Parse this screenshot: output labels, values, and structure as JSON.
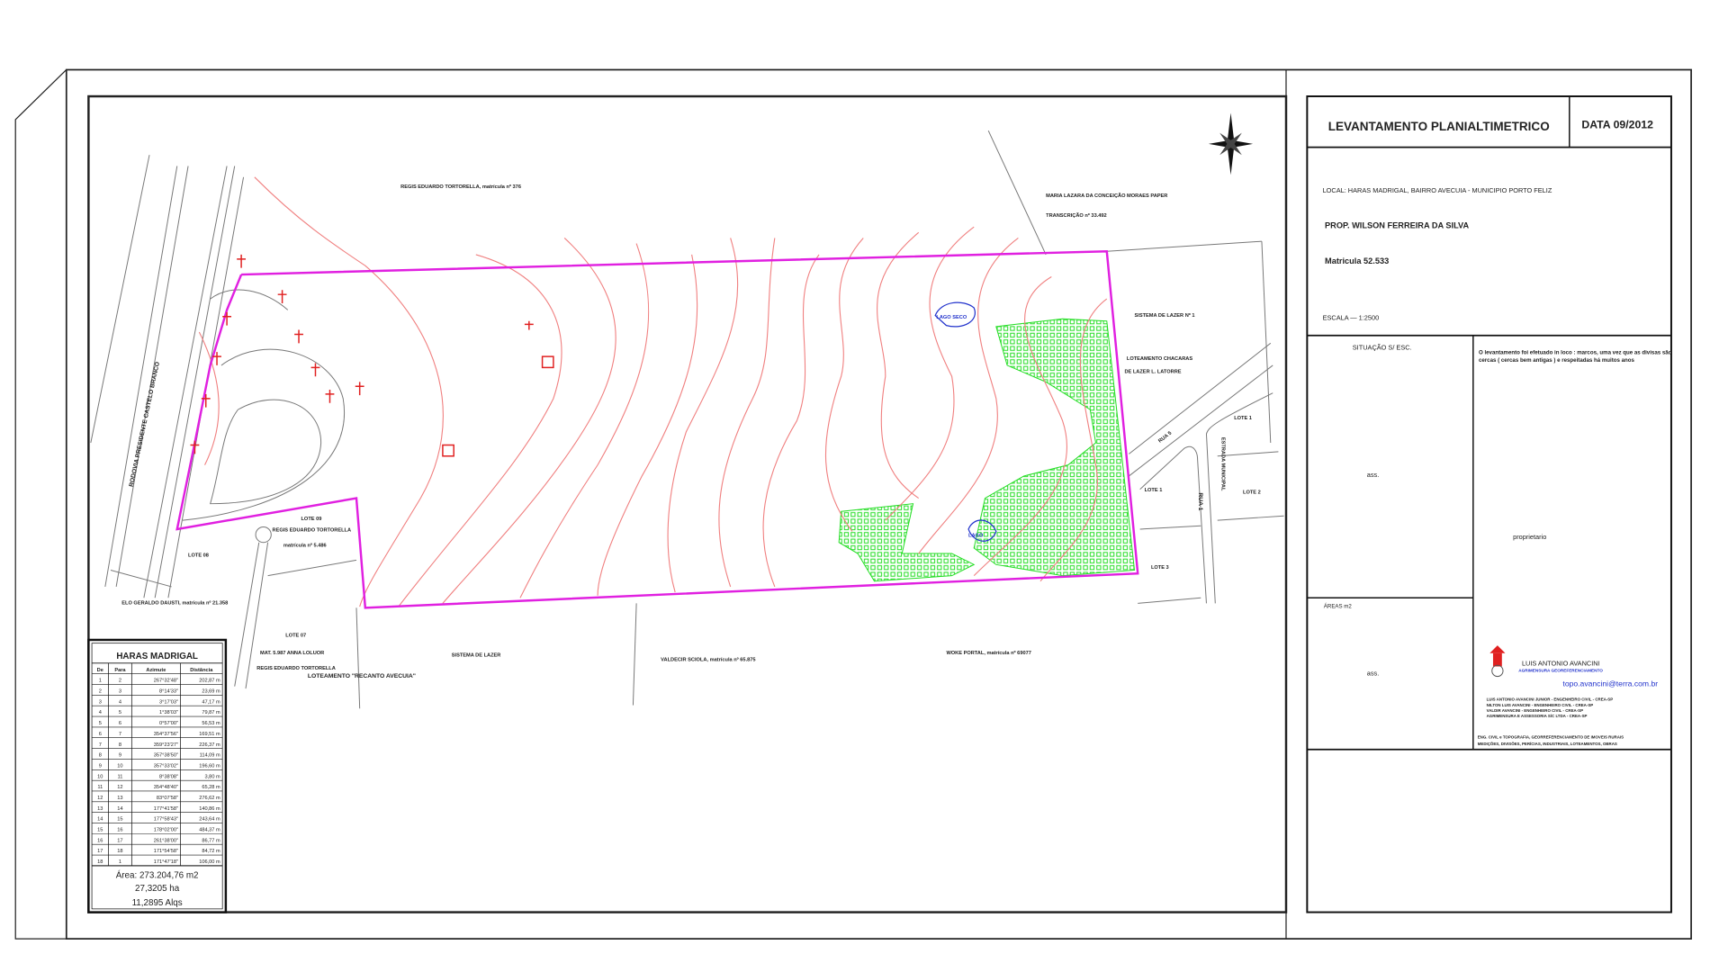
{
  "title_block": {
    "title": "LEVANTAMENTO PLANIALTIMETRICO",
    "date": "DATA 09/2012",
    "local": "LOCAL: HARAS MADRIGAL, BAIRRO AVECUIA - MUNICIPIO PORTO FELIZ",
    "owner": "PROP. WILSON FERREIRA DA SILVA",
    "registry": "Matricula 52.533",
    "scale": "ESCALA — 1:2500",
    "situation": "SITUAÇÃO S/ ESC.",
    "note": "O levantamento foi efetuado in loco : marcos, uma vez que as divisas são",
    "note2": "cercas ( cercas bem antigas ) e respeitadas há muitos anos",
    "owner_label": "proprietario",
    "areas_label": "ÁREAS    m2",
    "signature_1": "ass.",
    "signature_2": "ass.",
    "company": "LUIS ANTONIO AVANCINI",
    "company_sub": "AGRIMENSURA GEOREFERENCIAMENTO",
    "email": "topo.avancini@terra.com.br",
    "credits": [
      "LUIS ANTONIO AVANCINI JUNIOR - ENGENHEIRO CIVIL - CREA-SP",
      "NILTON LUIS AVANCINI - ENGENHEIRO CIVIL - CREA-SP",
      "VALDIR AVANCINI - ENGENHEIRO CIVIL - CREA-SP",
      "AGRIMENSURA E ASSESSORIA S/C LTDA - CREA-SP"
    ],
    "services": [
      "ENG. CIVIL e TOPOGRAFIA, GEORREFERENCIAMENTO DE IMOVEIS RURAIS",
      "MEDIÇÕES, DIVISÕES, PERÍCIAS, INDUSTRIAIS, LOTEAMENTOS, OBRAS"
    ]
  },
  "table": {
    "title": "HARAS MADRIGAL",
    "headers": [
      "De",
      "Para",
      "Azimute",
      "Distância"
    ],
    "rows": [
      [
        "1",
        "2",
        "267°32'48\"",
        "202,87 m"
      ],
      [
        "2",
        "3",
        "8°14'33\"",
        "23,69 m"
      ],
      [
        "3",
        "4",
        "3°17'03\"",
        "47,17 m"
      ],
      [
        "4",
        "5",
        "1°38'03\"",
        "79,87 m"
      ],
      [
        "5",
        "6",
        "0°57'00\"",
        "56,53 m"
      ],
      [
        "6",
        "7",
        "354°37'56\"",
        "169,51 m"
      ],
      [
        "7",
        "8",
        "359°23'27\"",
        "226,37 m"
      ],
      [
        "8",
        "9",
        "357°38'50\"",
        "114,09 m"
      ],
      [
        "9",
        "10",
        "357°33'02\"",
        "196,60 m"
      ],
      [
        "10",
        "11",
        "8°38'08\"",
        "3,80 m"
      ],
      [
        "11",
        "12",
        "354°48'40\"",
        "65,28 m"
      ],
      [
        "12",
        "13",
        "83°07'58\"",
        "276,62 m"
      ],
      [
        "13",
        "14",
        "177°41'58\"",
        "140,86 m"
      ],
      [
        "14",
        "15",
        "177°58'43\"",
        "243,64 m"
      ],
      [
        "15",
        "16",
        "178°02'00\"",
        "484,37 m"
      ],
      [
        "16",
        "17",
        "261°38'00\"",
        "86,77 m"
      ],
      [
        "17",
        "18",
        "171°54'58\"",
        "84,72 m"
      ],
      [
        "18",
        "1",
        "171°47'18\"",
        "106,00 m"
      ]
    ],
    "area_m2": "Área: 273.204,76 m2",
    "area_ha": "27,3205 ha",
    "area_alq": "11,2895 Alqs"
  },
  "map": {
    "labels": {
      "highway": "RODOVIA PRESIDENTE CASTELO BRANCO",
      "north_owner": "REGIS EDUARDO TORTORELLA, matrícula nº 376",
      "ne_owner": "MARIA LAZARA DA CONCEIÇÃO MORAES PAPER",
      "ne_transcription": "TRANSCRIÇÃO nº 33.492",
      "leisure_1": "SISTEMA DE LAZER Nº 1",
      "allotment_1": "LOTEAMENTO CHACARAS",
      "allotment_2": "DE LAZER L. LATORRE",
      "lake_dry": "LAGO SECO",
      "lake": "LAGO",
      "street_5": "RUA 5",
      "street_1": "RUA 1",
      "lot_1a": "LOTE 1",
      "lot_1b": "LOTE 1",
      "lot_2": "LOTE 2",
      "lot_3": "LOTE 3",
      "lot_08": "LOTE 08",
      "lot_09": "LOTE 09",
      "lot_09_owner": "REGIS EDUARDO TORTORELLA",
      "lot_09_reg": "matrícula nº 5.486",
      "west_owner": "ELO GERALDO DAUSTI, matrícula nº 21.358",
      "lot_07": "LOTE 07",
      "lot_07_reg": "MAT. 5.987 ANNA LOLUOR",
      "lot_07_owner": "REGIS EDUARDO TORTORELLA",
      "recanto": "LOTEAMENTO \"RECANTO AVECUIA\"",
      "leisure_s": "SISTEMA DE LAZER",
      "south_owner_1": "VALDECIR SCIOLA, matrícula nº 65.875",
      "south_owner_2": "WOKE PORTAL, matrícula nº 69077",
      "east_road": "ESTRADA MUNICIPAL"
    },
    "colors": {
      "boundary": "#e020e0",
      "contours": "#f08080",
      "vegetation": "#22dd22",
      "water": "#2233cc",
      "markers": "#e02020"
    }
  }
}
